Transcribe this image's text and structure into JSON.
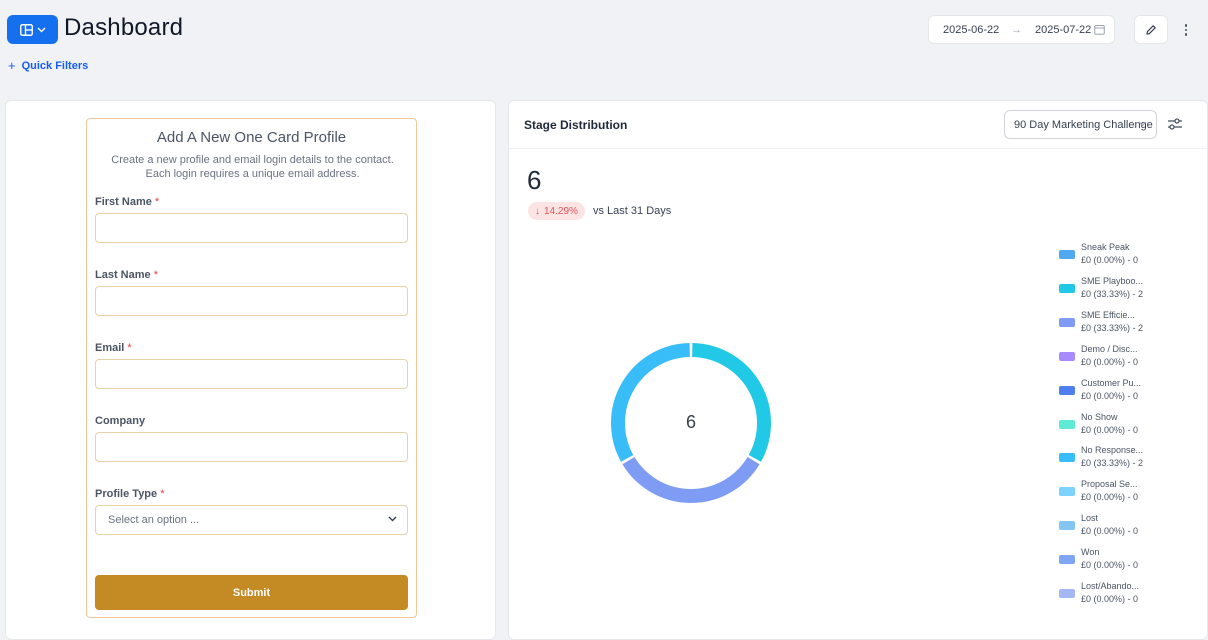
{
  "header": {
    "title": "Dashboard",
    "quick_filters": "Quick Filters",
    "date_start": "2025-06-22",
    "date_end": "2025-07-22"
  },
  "form": {
    "title": "Add A New One Card Profile",
    "desc_line1": "Create a new profile and email login details to the contact.",
    "desc_line2": "Each login requires a unique email address.",
    "first_name_label": "First Name",
    "last_name_label": "Last Name",
    "email_label": "Email",
    "company_label": "Company",
    "profile_type_label": "Profile Type",
    "required_mark": "*",
    "profile_type_placeholder": "Select an option ...",
    "submit_label": "Submit"
  },
  "stage_panel": {
    "title": "Stage Distribution",
    "pipeline_selected": "90 Day Marketing Challenge",
    "total": "6",
    "change_pct": "14.29%",
    "compare_label": "vs Last 31 Days",
    "donut_center": "6"
  },
  "colors": {
    "accent": "#1570ef",
    "submit": "#c48a24",
    "badge_bg": "#fde4e4",
    "badge_text": "#e05454"
  },
  "chart_data": {
    "type": "pie",
    "variant": "donut",
    "center_label": "6",
    "series": [
      {
        "name": "Sneak Peak",
        "label": "£0 (0.00%) - 0",
        "count": 0,
        "color": "#4fa8f0"
      },
      {
        "name": "SME Playboo...",
        "label": "£0 (33.33%) - 2",
        "count": 2,
        "color": "#22c9e6"
      },
      {
        "name": "SME Efficie...",
        "label": "£0 (33.33%) - 2",
        "count": 2,
        "color": "#7f9cf5"
      },
      {
        "name": "Demo / Disc...",
        "label": "£0 (0.00%) - 0",
        "count": 0,
        "color": "#a78bfa"
      },
      {
        "name": "Customer Pu...",
        "label": "£0 (0.00%) - 0",
        "count": 0,
        "color": "#4f7fef"
      },
      {
        "name": "No Show",
        "label": "£0 (0.00%) - 0",
        "count": 0,
        "color": "#5eead4"
      },
      {
        "name": "No Response...",
        "label": "£0 (33.33%) - 2",
        "count": 2,
        "color": "#38bdf8"
      },
      {
        "name": "Proposal Se...",
        "label": "£0 (0.00%) - 0",
        "count": 0,
        "color": "#7dd3fc"
      },
      {
        "name": "Lost",
        "label": "£0 (0.00%) - 0",
        "count": 0,
        "color": "#84c5f4"
      },
      {
        "name": "Won",
        "label": "£0 (0.00%) - 0",
        "count": 0,
        "color": "#7ea6f2"
      },
      {
        "name": "Lost/Abando...",
        "label": "£0 (0.00%) - 0",
        "count": 0,
        "color": "#a5b8f5"
      }
    ]
  }
}
